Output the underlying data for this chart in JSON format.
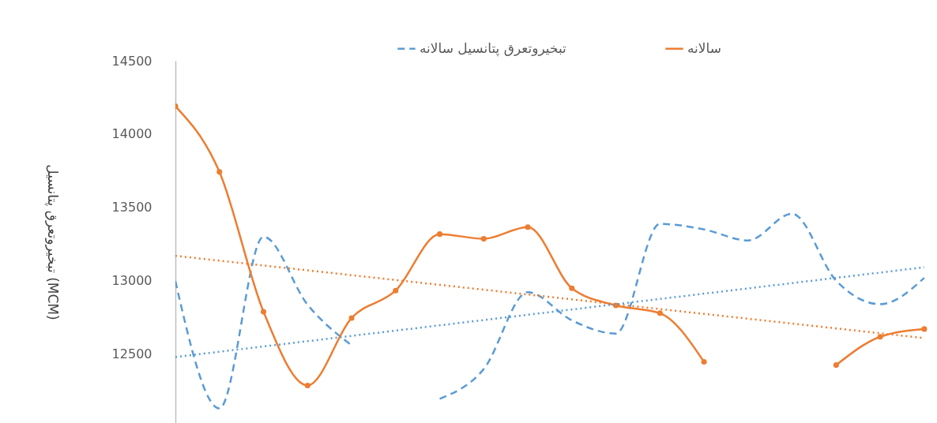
{
  "chart_data": {
    "type": "line",
    "ylabel": "تبخیروتعرق پتانسیل (MCM)",
    "categories": [
      null,
      null,
      null,
      null,
      null,
      null,
      null,
      null,
      null,
      null,
      null,
      null,
      null,
      null,
      null,
      null,
      null,
      null
    ],
    "series": [
      {
        "name": "تبخیروتعرق پتانسیل سالانه",
        "color": "#5b9bd5",
        "line_style": "dashed",
        "marker": "none",
        "values": [
          12997,
          12130,
          13300,
          12837,
          12560,
          null,
          12195,
          12398,
          12922,
          12730,
          12640,
          13388,
          13350,
          13275,
          13457,
          13000,
          12840,
          13020
        ]
      },
      {
        "name": "سالانه",
        "color": "#ed7d31",
        "line_style": "solid",
        "marker": "circle",
        "values": [
          14190,
          13742,
          12789,
          12286,
          12746,
          12933,
          13318,
          13286,
          13366,
          12949,
          12832,
          12779,
          12447,
          null,
          null,
          12425,
          12618,
          12671
        ]
      },
      {
        "color": "#ed7d31",
        "line_style": "dotted",
        "marker": "none",
        "values": [
          13170,
          13137,
          13104,
          13071,
          13038,
          13005,
          12972,
          12939,
          12906,
          12873,
          12840,
          12807,
          12774,
          12741,
          12708,
          12675,
          12642,
          12609
        ]
      },
      {
        "color": "#5b9bd5",
        "line_style": "dotted",
        "marker": "none",
        "values": [
          12480,
          12516,
          12552,
          12588,
          12624,
          12660,
          12696,
          12732,
          12768,
          12804,
          12840,
          12876,
          12912,
          12948,
          12984,
          13020,
          13056,
          13092
        ]
      }
    ],
    "ylim": [
      12030,
      14500
    ],
    "yticks": [
      12500,
      13000,
      13500,
      14000,
      14500
    ],
    "tick_labels": "y",
    "grid": false,
    "legend": "top"
  }
}
